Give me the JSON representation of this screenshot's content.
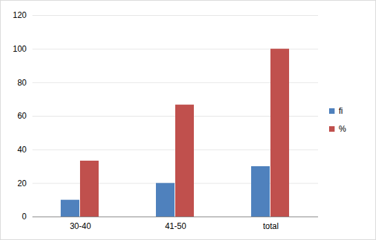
{
  "chart_data": {
    "type": "bar",
    "categories": [
      "30-40",
      "41-50",
      "total"
    ],
    "series": [
      {
        "name": "fi",
        "color": "#4f81bd",
        "values": [
          10,
          20,
          30
        ]
      },
      {
        "name": "%",
        "color": "#c0504d",
        "values": [
          33.3,
          66.7,
          100
        ]
      }
    ],
    "ylim": [
      0,
      120
    ],
    "yticks": [
      0,
      20,
      40,
      60,
      80,
      100,
      120
    ],
    "grid": true,
    "legend": "right"
  }
}
